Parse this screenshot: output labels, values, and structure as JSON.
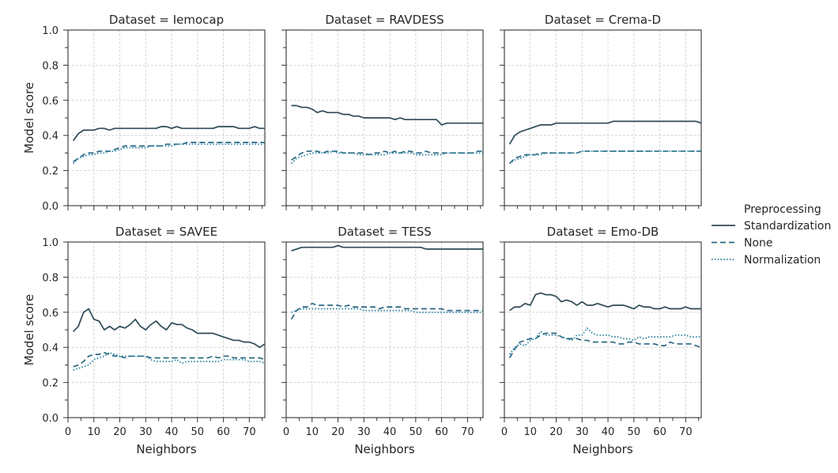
{
  "legend": {
    "title": "Preprocessing",
    "items": [
      {
        "label": "Standardization",
        "dash": "solid"
      },
      {
        "label": "None",
        "dash": "dashed"
      },
      {
        "label": "Normalization",
        "dash": "dotted"
      }
    ]
  },
  "colors": {
    "Standardization": "#2e4a56",
    "None": "#2b6781",
    "Normalization": "#2980a0"
  },
  "chart_data": {
    "type": "line",
    "facet_grid": "2x3",
    "xlabel": "Neighbors",
    "ylabel": "Model score",
    "xlim": [
      0,
      76
    ],
    "ylim": [
      0,
      1
    ],
    "x_ticks": [
      0,
      10,
      20,
      30,
      40,
      50,
      60,
      70
    ],
    "y_ticks": [
      0.0,
      0.2,
      0.4,
      0.6,
      0.8,
      1.0
    ],
    "y_tick_labels": [
      "0.0",
      "0.2",
      "0.4",
      "0.6",
      "0.8",
      "1.0"
    ],
    "grid": true,
    "legend_placement": "right",
    "x": [
      2,
      4,
      6,
      8,
      10,
      12,
      14,
      16,
      18,
      20,
      22,
      24,
      26,
      28,
      30,
      32,
      34,
      36,
      38,
      40,
      42,
      44,
      46,
      48,
      50,
      52,
      54,
      56,
      58,
      60,
      62,
      64,
      66,
      68,
      70,
      72,
      74,
      76
    ],
    "panels": [
      {
        "title": "Dataset = Iemocap",
        "series": [
          {
            "name": "Standardization",
            "values": [
              0.37,
              0.41,
              0.43,
              0.43,
              0.43,
              0.44,
              0.44,
              0.43,
              0.44,
              0.44,
              0.44,
              0.44,
              0.44,
              0.44,
              0.44,
              0.44,
              0.44,
              0.45,
              0.45,
              0.44,
              0.45,
              0.44,
              0.44,
              0.44,
              0.44,
              0.44,
              0.44,
              0.44,
              0.45,
              0.45,
              0.45,
              0.45,
              0.44,
              0.44,
              0.44,
              0.45,
              0.44,
              0.44
            ]
          },
          {
            "name": "None",
            "values": [
              0.25,
              0.27,
              0.29,
              0.3,
              0.3,
              0.31,
              0.31,
              0.31,
              0.32,
              0.33,
              0.34,
              0.34,
              0.34,
              0.34,
              0.34,
              0.34,
              0.34,
              0.34,
              0.35,
              0.35,
              0.35,
              0.35,
              0.36,
              0.36,
              0.36,
              0.36,
              0.36,
              0.36,
              0.36,
              0.36,
              0.36,
              0.36,
              0.36,
              0.36,
              0.36,
              0.36,
              0.36,
              0.36
            ]
          },
          {
            "name": "Normalization",
            "values": [
              0.24,
              0.27,
              0.28,
              0.29,
              0.29,
              0.3,
              0.3,
              0.31,
              0.31,
              0.32,
              0.33,
              0.33,
              0.33,
              0.33,
              0.33,
              0.34,
              0.34,
              0.34,
              0.34,
              0.34,
              0.35,
              0.35,
              0.35,
              0.35,
              0.35,
              0.35,
              0.35,
              0.35,
              0.35,
              0.35,
              0.35,
              0.35,
              0.35,
              0.35,
              0.35,
              0.35,
              0.35,
              0.35
            ]
          }
        ]
      },
      {
        "title": "Dataset = RAVDESS",
        "series": [
          {
            "name": "Standardization",
            "values": [
              0.57,
              0.57,
              0.56,
              0.56,
              0.55,
              0.53,
              0.54,
              0.53,
              0.53,
              0.53,
              0.52,
              0.52,
              0.51,
              0.51,
              0.5,
              0.5,
              0.5,
              0.5,
              0.5,
              0.5,
              0.49,
              0.5,
              0.49,
              0.49,
              0.49,
              0.49,
              0.49,
              0.49,
              0.49,
              0.46,
              0.47,
              0.47,
              0.47,
              0.47,
              0.47,
              0.47,
              0.47,
              0.47
            ]
          },
          {
            "name": "None",
            "values": [
              0.26,
              0.28,
              0.3,
              0.31,
              0.31,
              0.31,
              0.3,
              0.31,
              0.31,
              0.31,
              0.3,
              0.3,
              0.3,
              0.3,
              0.3,
              0.29,
              0.3,
              0.3,
              0.31,
              0.3,
              0.31,
              0.3,
              0.31,
              0.31,
              0.3,
              0.3,
              0.31,
              0.3,
              0.3,
              0.3,
              0.3,
              0.3,
              0.3,
              0.3,
              0.3,
              0.3,
              0.31,
              0.31
            ]
          },
          {
            "name": "Normalization",
            "values": [
              0.24,
              0.27,
              0.28,
              0.29,
              0.3,
              0.3,
              0.3,
              0.3,
              0.31,
              0.3,
              0.3,
              0.3,
              0.3,
              0.29,
              0.29,
              0.29,
              0.29,
              0.29,
              0.29,
              0.3,
              0.3,
              0.3,
              0.3,
              0.3,
              0.29,
              0.29,
              0.29,
              0.29,
              0.29,
              0.29,
              0.3,
              0.3,
              0.3,
              0.3,
              0.3,
              0.3,
              0.3,
              0.3
            ]
          }
        ]
      },
      {
        "title": "Dataset = Crema-D",
        "series": [
          {
            "name": "Standardization",
            "values": [
              0.35,
              0.4,
              0.42,
              0.43,
              0.44,
              0.45,
              0.46,
              0.46,
              0.46,
              0.47,
              0.47,
              0.47,
              0.47,
              0.47,
              0.47,
              0.47,
              0.47,
              0.47,
              0.47,
              0.47,
              0.48,
              0.48,
              0.48,
              0.48,
              0.48,
              0.48,
              0.48,
              0.48,
              0.48,
              0.48,
              0.48,
              0.48,
              0.48,
              0.48,
              0.48,
              0.48,
              0.48,
              0.47
            ]
          },
          {
            "name": "None",
            "values": [
              0.24,
              0.27,
              0.28,
              0.29,
              0.29,
              0.29,
              0.3,
              0.3,
              0.3,
              0.3,
              0.3,
              0.3,
              0.3,
              0.3,
              0.31,
              0.31,
              0.31,
              0.31,
              0.31,
              0.31,
              0.31,
              0.31,
              0.31,
              0.31,
              0.31,
              0.31,
              0.31,
              0.31,
              0.31,
              0.31,
              0.31,
              0.31,
              0.31,
              0.31,
              0.31,
              0.31,
              0.31,
              0.31
            ]
          },
          {
            "name": "Normalization",
            "values": [
              0.24,
              0.26,
              0.27,
              0.28,
              0.29,
              0.29,
              0.29,
              0.3,
              0.3,
              0.3,
              0.3,
              0.3,
              0.3,
              0.3,
              0.31,
              0.31,
              0.31,
              0.31,
              0.31,
              0.31,
              0.31,
              0.31,
              0.31,
              0.31,
              0.31,
              0.31,
              0.31,
              0.31,
              0.31,
              0.31,
              0.31,
              0.31,
              0.31,
              0.31,
              0.31,
              0.31,
              0.31,
              0.31
            ]
          }
        ]
      },
      {
        "title": "Dataset = SAVEE",
        "series": [
          {
            "name": "Standardization",
            "values": [
              0.49,
              0.52,
              0.6,
              0.62,
              0.56,
              0.55,
              0.5,
              0.52,
              0.5,
              0.52,
              0.51,
              0.53,
              0.56,
              0.52,
              0.5,
              0.53,
              0.55,
              0.52,
              0.5,
              0.54,
              0.53,
              0.53,
              0.51,
              0.5,
              0.48,
              0.48,
              0.48,
              0.48,
              0.47,
              0.46,
              0.45,
              0.44,
              0.44,
              0.43,
              0.43,
              0.42,
              0.4,
              0.42
            ]
          },
          {
            "name": "None",
            "values": [
              0.29,
              0.3,
              0.32,
              0.35,
              0.36,
              0.36,
              0.37,
              0.36,
              0.35,
              0.35,
              0.34,
              0.35,
              0.35,
              0.35,
              0.35,
              0.34,
              0.34,
              0.34,
              0.34,
              0.34,
              0.34,
              0.34,
              0.34,
              0.34,
              0.34,
              0.34,
              0.34,
              0.35,
              0.34,
              0.35,
              0.35,
              0.34,
              0.34,
              0.34,
              0.34,
              0.34,
              0.34,
              0.33
            ]
          },
          {
            "name": "Normalization",
            "values": [
              0.27,
              0.28,
              0.29,
              0.3,
              0.33,
              0.34,
              0.35,
              0.37,
              0.36,
              0.35,
              0.35,
              0.35,
              0.35,
              0.35,
              0.35,
              0.33,
              0.32,
              0.32,
              0.32,
              0.32,
              0.33,
              0.31,
              0.32,
              0.32,
              0.32,
              0.32,
              0.32,
              0.32,
              0.32,
              0.33,
              0.33,
              0.33,
              0.33,
              0.33,
              0.32,
              0.32,
              0.32,
              0.31
            ]
          }
        ]
      },
      {
        "title": "Dataset = TESS",
        "series": [
          {
            "name": "Standardization",
            "values": [
              0.95,
              0.96,
              0.97,
              0.97,
              0.97,
              0.97,
              0.97,
              0.97,
              0.97,
              0.98,
              0.97,
              0.97,
              0.97,
              0.97,
              0.97,
              0.97,
              0.97,
              0.97,
              0.97,
              0.97,
              0.97,
              0.97,
              0.97,
              0.97,
              0.97,
              0.97,
              0.96,
              0.96,
              0.96,
              0.96,
              0.96,
              0.96,
              0.96,
              0.96,
              0.96,
              0.96,
              0.96,
              0.96
            ]
          },
          {
            "name": "None",
            "values": [
              0.56,
              0.61,
              0.63,
              0.63,
              0.65,
              0.64,
              0.64,
              0.64,
              0.64,
              0.64,
              0.63,
              0.64,
              0.63,
              0.63,
              0.63,
              0.63,
              0.63,
              0.62,
              0.63,
              0.63,
              0.63,
              0.63,
              0.62,
              0.62,
              0.62,
              0.62,
              0.62,
              0.62,
              0.62,
              0.62,
              0.61,
              0.61,
              0.61,
              0.61,
              0.61,
              0.61,
              0.61,
              0.61
            ]
          },
          {
            "name": "Normalization",
            "values": [
              0.6,
              0.61,
              0.62,
              0.62,
              0.62,
              0.62,
              0.62,
              0.62,
              0.62,
              0.62,
              0.62,
              0.62,
              0.62,
              0.62,
              0.61,
              0.61,
              0.61,
              0.61,
              0.61,
              0.61,
              0.61,
              0.61,
              0.61,
              0.61,
              0.6,
              0.6,
              0.6,
              0.6,
              0.6,
              0.6,
              0.6,
              0.6,
              0.6,
              0.6,
              0.6,
              0.6,
              0.6,
              0.6
            ]
          }
        ]
      },
      {
        "title": "Dataset = Emo-DB",
        "series": [
          {
            "name": "Standardization",
            "values": [
              0.61,
              0.63,
              0.63,
              0.65,
              0.64,
              0.7,
              0.71,
              0.7,
              0.7,
              0.69,
              0.66,
              0.67,
              0.66,
              0.64,
              0.66,
              0.64,
              0.64,
              0.65,
              0.64,
              0.63,
              0.64,
              0.64,
              0.64,
              0.63,
              0.62,
              0.64,
              0.63,
              0.63,
              0.62,
              0.62,
              0.63,
              0.62,
              0.62,
              0.62,
              0.63,
              0.62,
              0.62,
              0.62
            ]
          },
          {
            "name": "None",
            "values": [
              0.34,
              0.39,
              0.43,
              0.44,
              0.45,
              0.45,
              0.47,
              0.48,
              0.48,
              0.48,
              0.46,
              0.45,
              0.45,
              0.45,
              0.44,
              0.44,
              0.43,
              0.43,
              0.43,
              0.43,
              0.43,
              0.42,
              0.42,
              0.43,
              0.43,
              0.42,
              0.42,
              0.42,
              0.42,
              0.41,
              0.41,
              0.43,
              0.42,
              0.42,
              0.42,
              0.42,
              0.41,
              0.4
            ]
          },
          {
            "name": "Normalization",
            "values": [
              0.36,
              0.4,
              0.42,
              0.41,
              0.44,
              0.45,
              0.49,
              0.47,
              0.47,
              0.47,
              0.46,
              0.45,
              0.44,
              0.47,
              0.47,
              0.51,
              0.48,
              0.47,
              0.47,
              0.47,
              0.46,
              0.46,
              0.45,
              0.45,
              0.44,
              0.46,
              0.45,
              0.46,
              0.46,
              0.46,
              0.46,
              0.46,
              0.47,
              0.47,
              0.47,
              0.46,
              0.46,
              0.46
            ]
          }
        ]
      }
    ]
  }
}
